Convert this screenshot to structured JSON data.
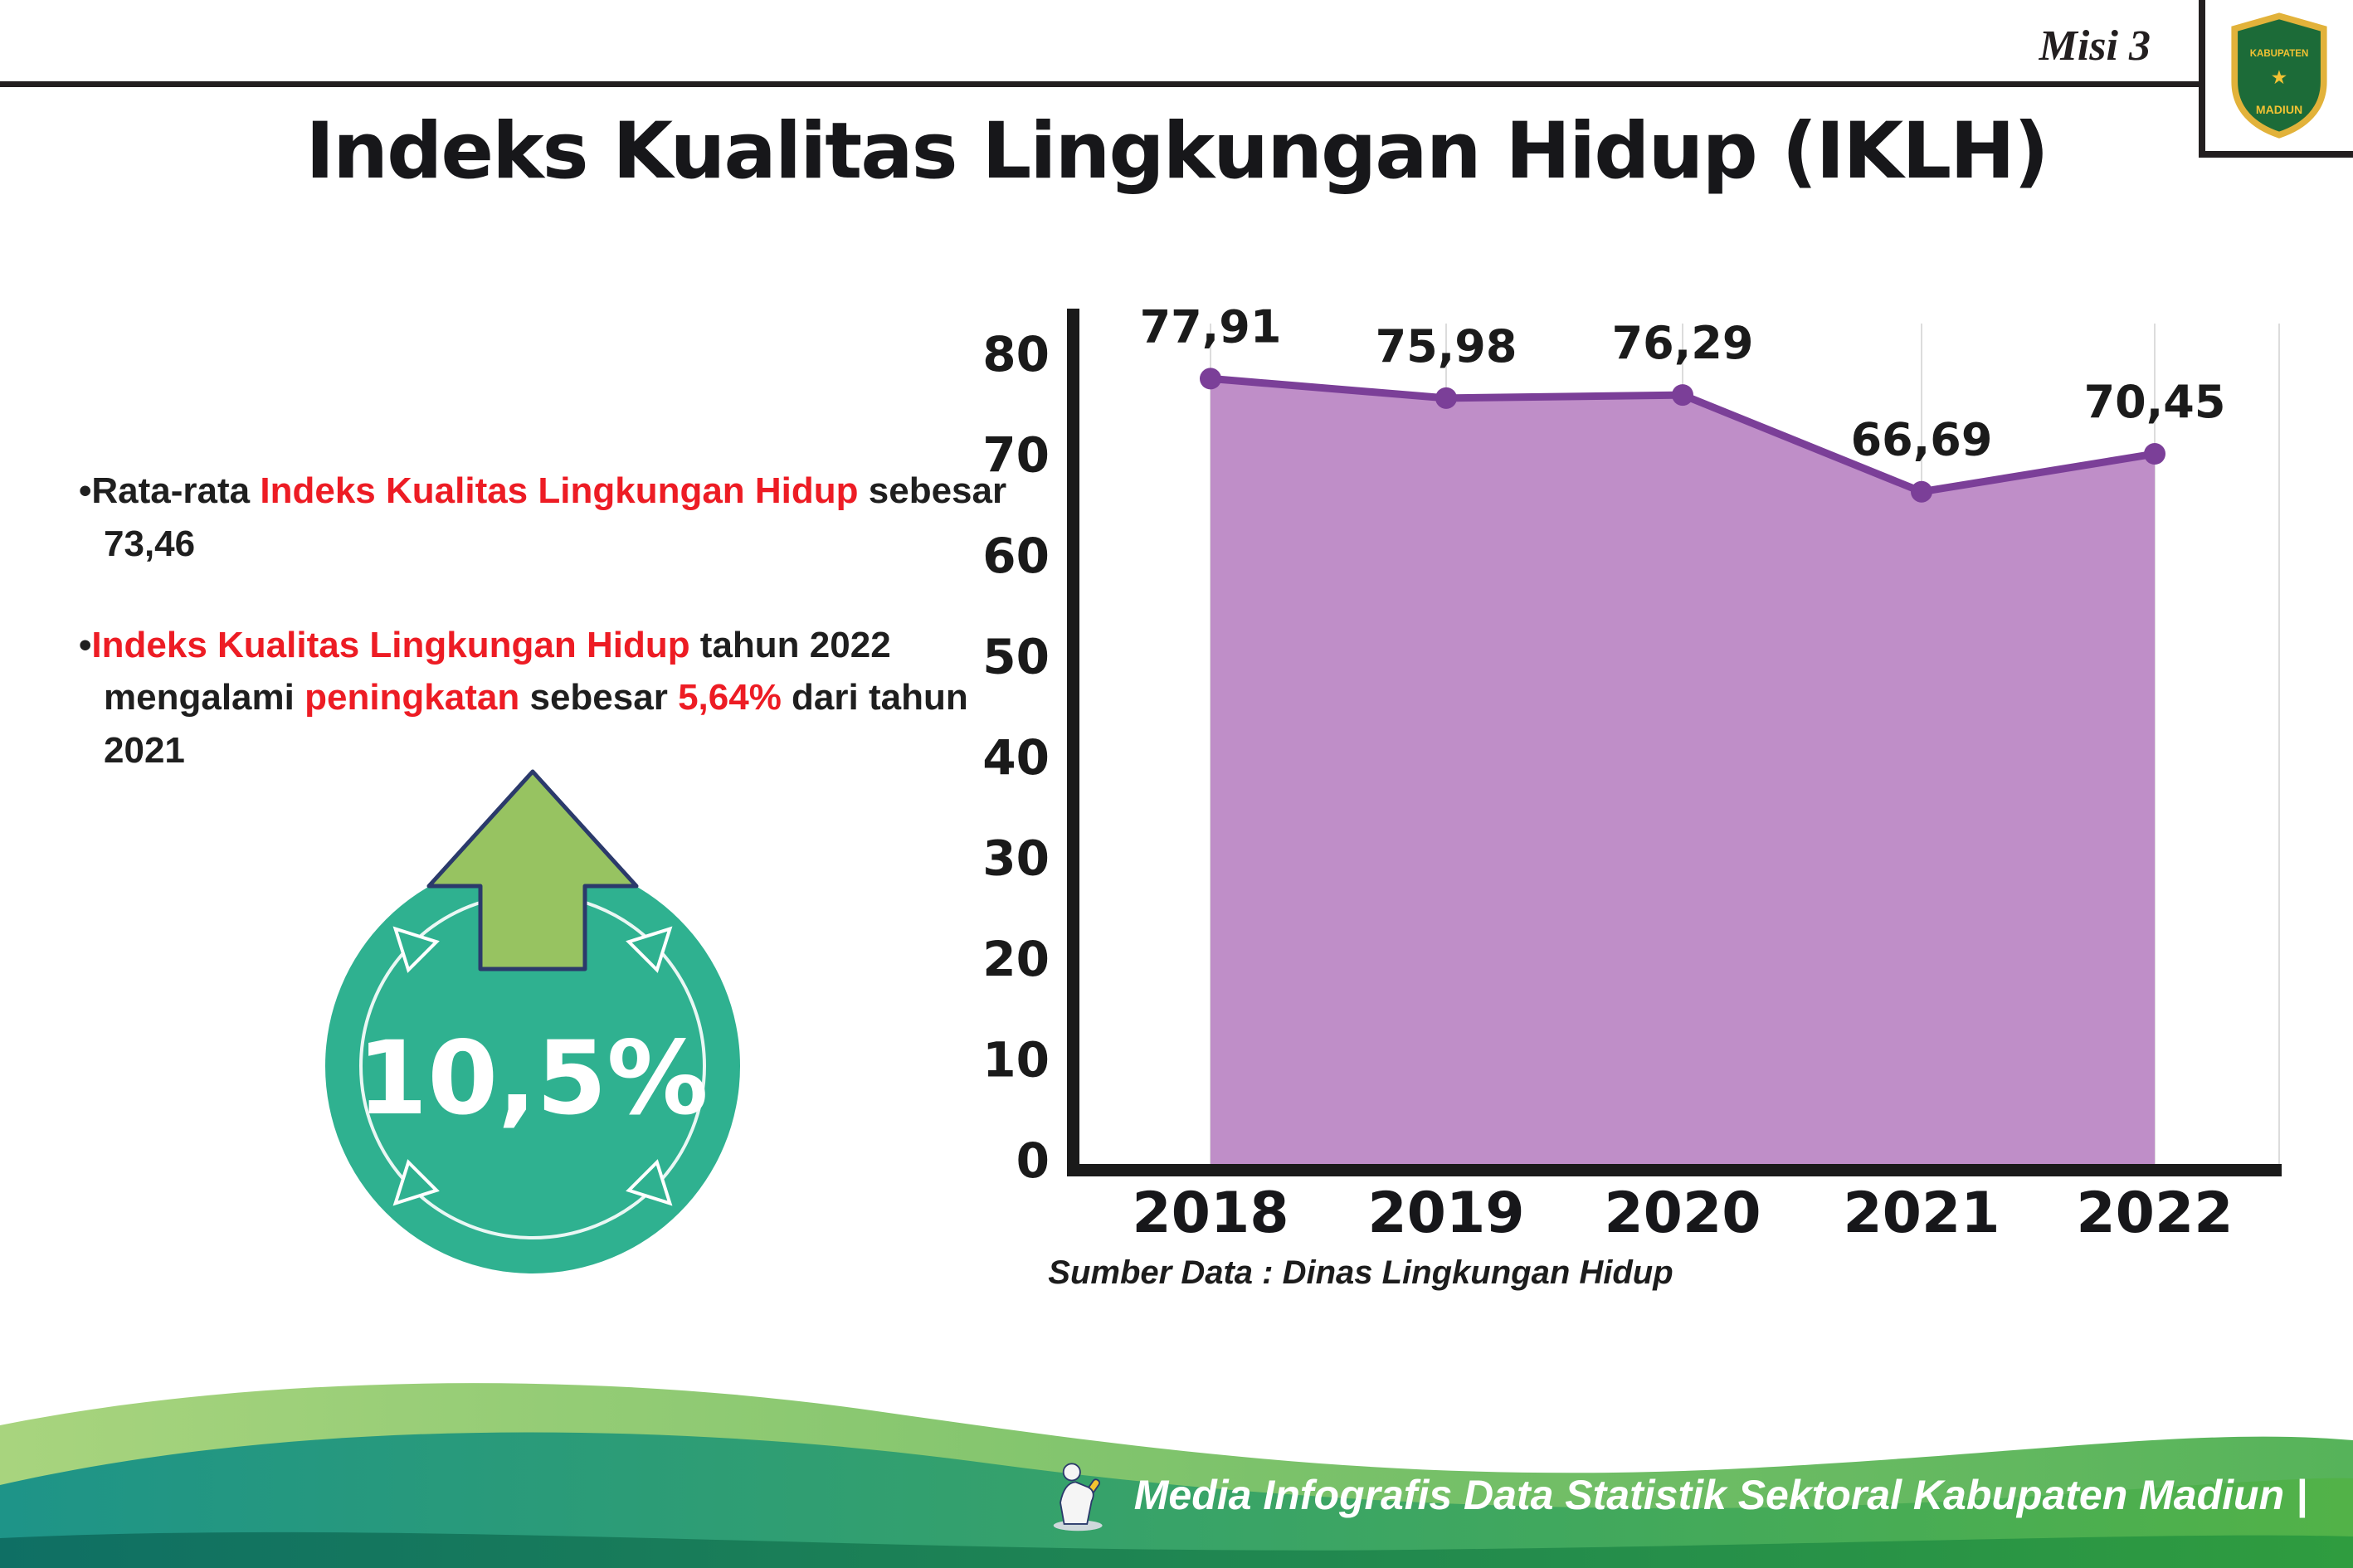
{
  "header": {
    "misi_label": "Misi 3",
    "title": "Indeks Kualitas Lingkungan Hidup (IKLH)",
    "logo": {
      "top_text": "KABUPATEN",
      "bottom_text": "MADIUN",
      "star": "★"
    }
  },
  "bullets": {
    "marker": "•",
    "items": [
      [
        {
          "t": "Rata-rata ",
          "c": "dark"
        },
        {
          "t": "Indeks Kualitas Lingkungan Hidup",
          "c": "red"
        },
        {
          "t": " sebesar 73,46",
          "c": "dark"
        }
      ],
      [
        {
          "t": "Indeks Kualitas Lingkungan Hidup",
          "c": "red"
        },
        {
          "t": " tahun 2022 mengalami ",
          "c": "dark"
        },
        {
          "t": "peningkatan",
          "c": "red"
        },
        {
          "t": " sebesar ",
          "c": "dark"
        },
        {
          "t": "5,64%",
          "c": "red"
        },
        {
          "t": " dari tahun 2021",
          "c": "dark"
        }
      ]
    ]
  },
  "badge": {
    "value": "10,5%",
    "circle_color": "#2fb190",
    "arrow_color": "#97c361",
    "arrow_outline": "#2b3a6b"
  },
  "chart_data": {
    "type": "area",
    "title": "",
    "categories": [
      "2018",
      "2019",
      "2020",
      "2021",
      "2022"
    ],
    "values": [
      77.91,
      75.98,
      76.29,
      66.69,
      70.45
    ],
    "point_labels": [
      "77,91",
      "75,98",
      "76,29",
      "66,69",
      "70,45"
    ],
    "ylim": [
      0,
      80
    ],
    "yticks": [
      0,
      10,
      20,
      30,
      40,
      50,
      60,
      70,
      80
    ],
    "grid": "vertical-light",
    "legend": "none",
    "line_color": "#7b3f98",
    "fill_color": "#bf8ec8",
    "axis_color": "#1a1a1a",
    "source_note": "Sumber Data : Dinas Lingkungan Hidup"
  },
  "footer": {
    "text": "Media Infografis Data Statistik Sektoral Kabupaten Madiun |"
  },
  "colors": {
    "accent_red": "#ed1c24",
    "rule": "#231f20",
    "footer_teal": "#1e9488",
    "footer_green": "#52b248"
  }
}
